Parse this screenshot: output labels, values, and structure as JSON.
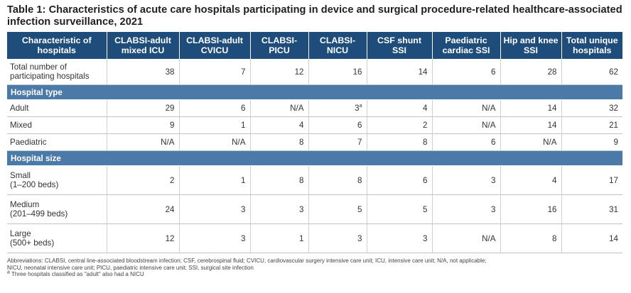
{
  "title": "Table 1: Characteristics of acute care hospitals participating in device and surgical procedure-related healthcare-associated infection surveillance, 2021",
  "table": {
    "headers": [
      "Characteristic of hospitals",
      "CLABSI-adult mixed ICU",
      "CLABSI-adult CVICU",
      "CLABSI-PICU",
      "CLABSI-NICU",
      "CSF shunt SSI",
      "Paediatric cardiac SSI",
      "Hip and knee SSI",
      "Total unique hospitals"
    ],
    "total_row": {
      "label_line1": "Total number of",
      "label_line2": "participating hospitals",
      "values": [
        "38",
        "7",
        "12",
        "16",
        "14",
        "6",
        "28",
        "62"
      ]
    },
    "section_type": "Hospital type",
    "type_rows": [
      {
        "label": "Adult",
        "values": [
          "29",
          "6",
          "N/A",
          "3",
          "4",
          "N/A",
          "14",
          "32"
        ],
        "footnote_mark": "a"
      },
      {
        "label": "Mixed",
        "values": [
          "9",
          "1",
          "4",
          "6",
          "2",
          "N/A",
          "14",
          "21"
        ]
      },
      {
        "label": "Paediatric",
        "values": [
          "N/A",
          "N/A",
          "8",
          "7",
          "8",
          "6",
          "N/A",
          "9"
        ]
      }
    ],
    "section_size": "Hospital size",
    "size_rows": [
      {
        "label_line1": "Small",
        "label_line2": "(1–200 beds)",
        "values": [
          "2",
          "1",
          "8",
          "8",
          "6",
          "3",
          "4",
          "17"
        ]
      },
      {
        "label_line1": "Medium",
        "label_line2": "(201–499 beds)",
        "values": [
          "24",
          "3",
          "3",
          "5",
          "5",
          "3",
          "16",
          "31"
        ]
      },
      {
        "label_line1": "Large",
        "label_line2": "(500+ beds)",
        "values": [
          "12",
          "3",
          "1",
          "3",
          "3",
          "N/A",
          "8",
          "14"
        ]
      }
    ]
  },
  "footnotes": {
    "abbrev_line1": "Abbreviations: CLABSI, central line-associated bloodstream infection; CSF, cerebrospinal fluid; CVICU, cardiovascular surgery intensive care unit; ICU, intensive care unit; N/A, not applicable;",
    "abbrev_line2": "NICU, neonatal intensive care unit; PICU, paediatric intensive care unit; SSI, surgical site infection",
    "note_mark": "a",
    "note_text": " Three hospitals classified as \"adult\" also had a NICU"
  }
}
